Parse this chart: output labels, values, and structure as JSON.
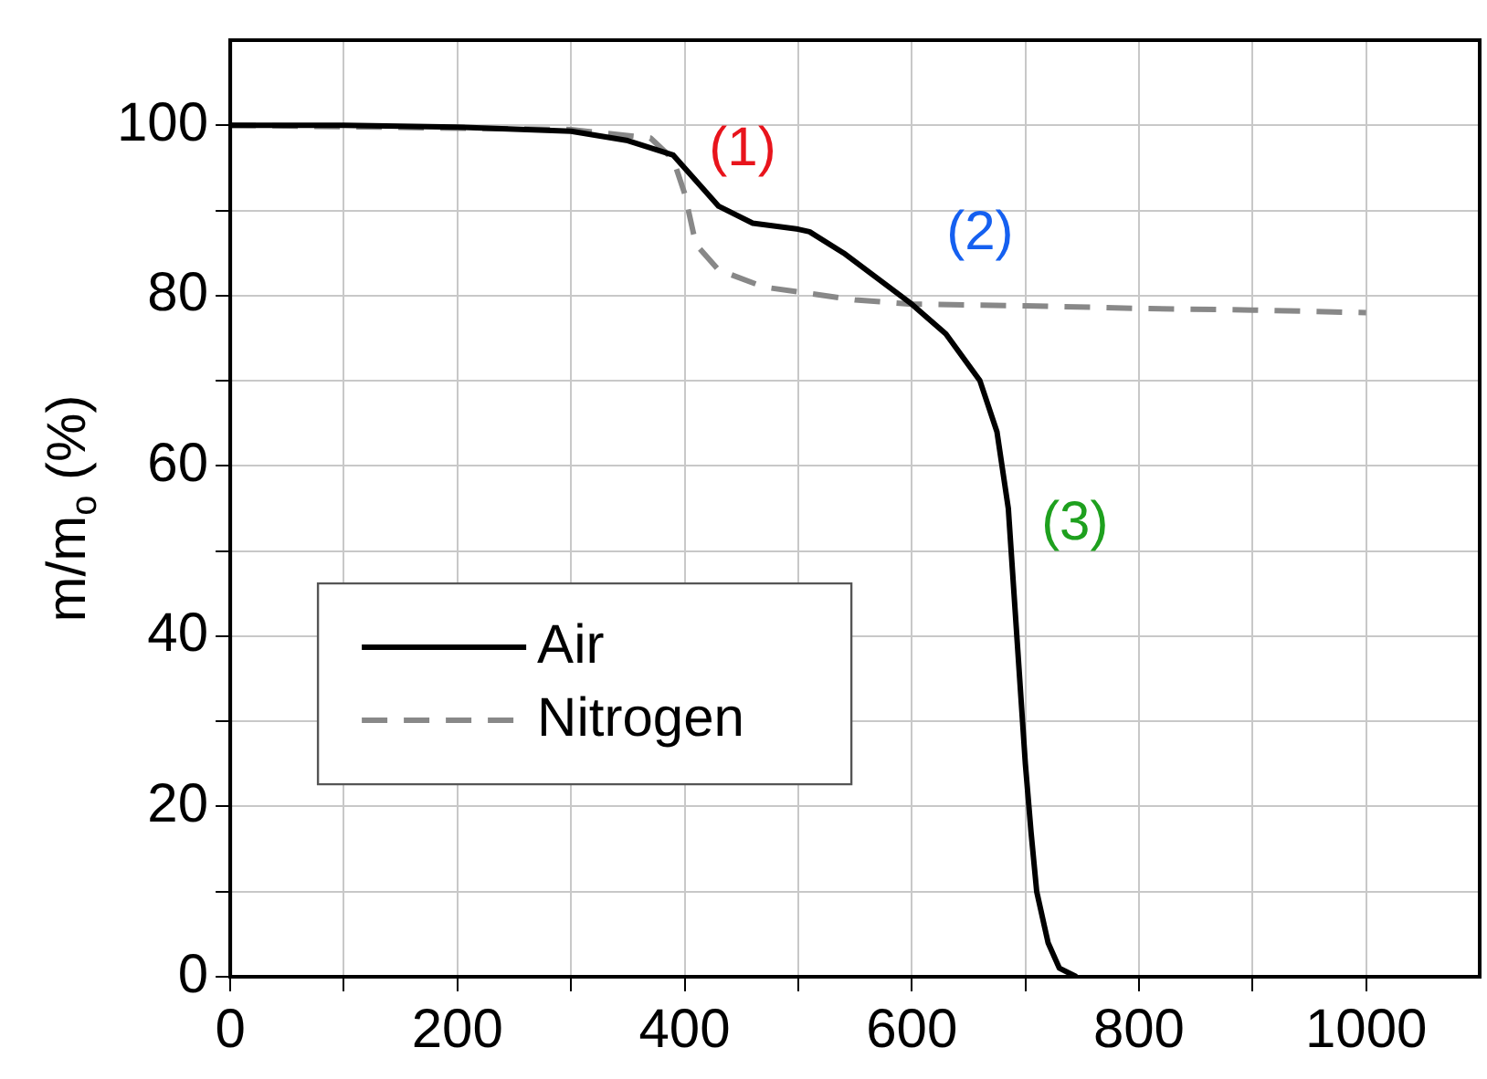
{
  "chart_data": {
    "type": "line",
    "ylabel": "m/m$_{o}$ (%)",
    "xlim": [
      0,
      1100
    ],
    "xticks": [
      0,
      {
        "value": 100,
        "label": null
      },
      200,
      {
        "value": 300,
        "label": null
      },
      400,
      {
        "value": 500,
        "label": null
      },
      600,
      {
        "value": 700,
        "label": null
      },
      800,
      {
        "value": 900,
        "label": null
      },
      1000
    ],
    "ylim": [
      0,
      110
    ],
    "yticks": [
      0,
      {
        "value": 10,
        "label": null
      },
      20,
      {
        "value": 30,
        "label": null
      },
      40,
      {
        "value": 50,
        "label": null
      },
      60,
      {
        "value": 70,
        "label": null
      },
      80,
      {
        "value": 90,
        "label": null
      },
      100
    ],
    "grid": true,
    "legend": "left",
    "marker": "none",
    "annotations": [
      "(1)",
      "(2)",
      "(3)"
    ],
    "series": [
      {
        "name": "Air",
        "color": "#000000",
        "line_style": "solid",
        "x": [
          0,
          100,
          200,
          300,
          350,
          390,
          400,
          430,
          460,
          500,
          510,
          540,
          570,
          600,
          630,
          660,
          675,
          685,
          690,
          695,
          700,
          705,
          710,
          720,
          730,
          745
        ],
        "values": [
          100,
          100,
          99.8,
          99.3,
          98.2,
          96.5,
          95,
          90.5,
          88.5,
          87.8,
          87.5,
          85,
          82,
          79,
          75.5,
          70,
          64,
          55,
          45,
          35,
          25,
          17,
          10,
          4,
          1,
          0
        ]
      },
      {
        "name": "Nitrogen",
        "color": "#888888",
        "line_style": "dashed",
        "x": [
          0,
          300,
          370,
          390,
          400,
          410,
          430,
          470,
          550,
          600,
          700,
          800,
          900,
          1000
        ],
        "values": [
          100,
          99.5,
          98.5,
          96,
          92,
          86,
          83,
          81,
          79.5,
          79,
          78.8,
          78.5,
          78.3,
          78
        ]
      }
    ]
  }
}
